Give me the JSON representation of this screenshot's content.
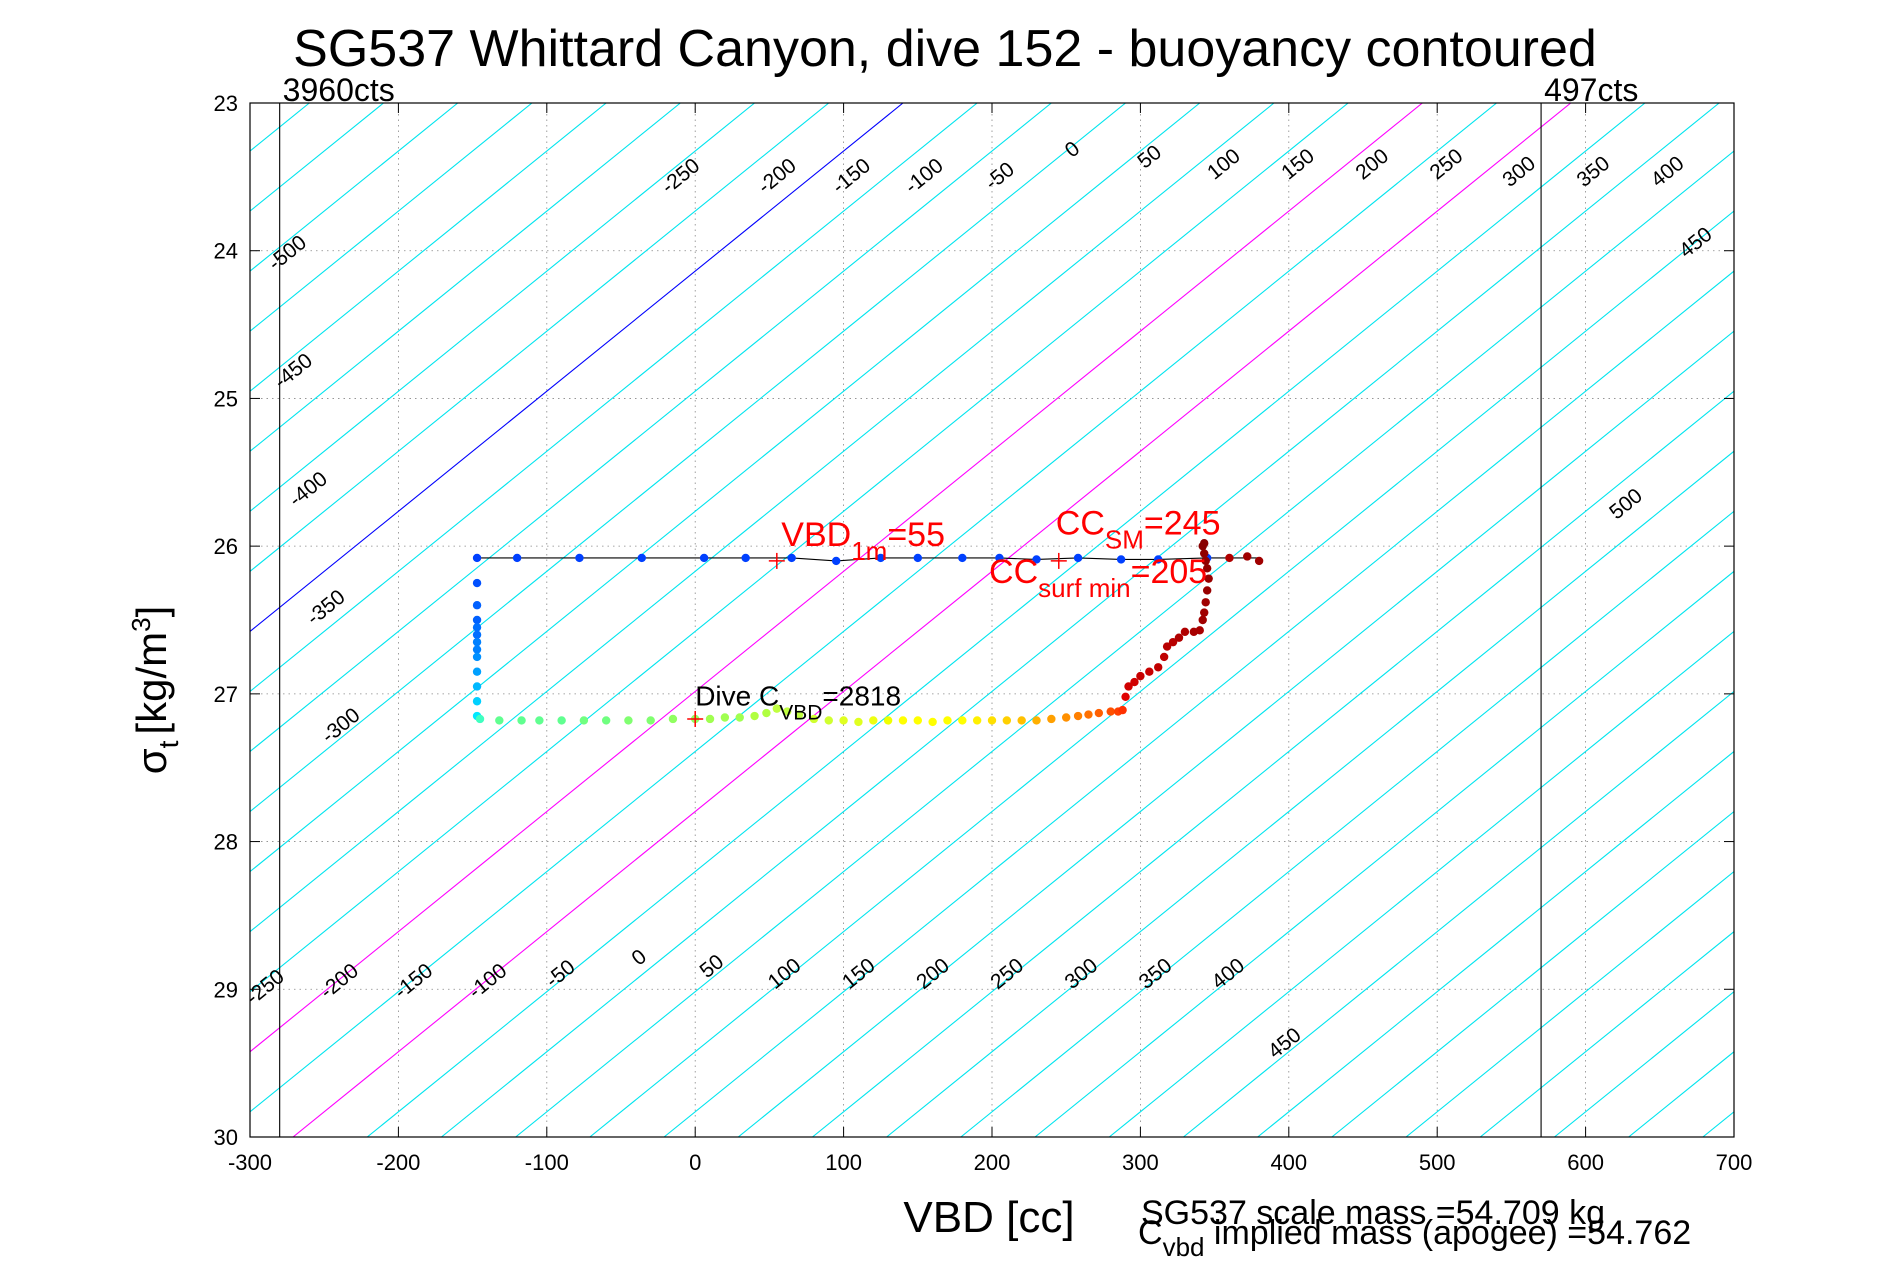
{
  "chart_data": {
    "type": "scatter",
    "title": "SG537 Whittard Canyon, dive 152 - buoyancy contoured",
    "xlabel": "VBD [cc]",
    "ylabel": {
      "main": "σ",
      "sub": "t",
      "unit": "[kg/m",
      "sup": "3",
      "close": "]"
    },
    "xlim": [
      -300,
      700
    ],
    "ylim": [
      23,
      30
    ],
    "y_reversed": true,
    "grid": true,
    "x_ticks": [
      -300,
      -200,
      -100,
      0,
      100,
      200,
      300,
      400,
      500,
      600,
      700
    ],
    "x_tick_labels": [
      "-300",
      "-200",
      "-100",
      "0",
      "100",
      "200",
      "300",
      "400",
      "500",
      "600",
      "700"
    ],
    "y_ticks": [
      23,
      24,
      25,
      26,
      27,
      28,
      29,
      30
    ],
    "y_tick_labels": [
      "23",
      "24",
      "25",
      "26",
      "27",
      "28",
      "29",
      "30"
    ],
    "vertical_limits": [
      {
        "x": -280,
        "label": "3960cts"
      },
      {
        "x": 570,
        "label": "497cts"
      }
    ],
    "contours": {
      "slope_cc_per_sigma": 123,
      "ref_sigma": 23,
      "x_at_ref": [
        -410,
        -360,
        -310,
        -260,
        -210,
        -160,
        -110,
        -60,
        -10,
        40,
        90,
        140,
        190,
        240,
        290,
        340,
        390,
        440,
        490,
        540,
        590,
        640,
        690,
        740,
        790,
        840,
        890,
        940,
        990,
        1040,
        1090,
        1140,
        1190,
        1240,
        1290,
        1340,
        1390,
        1440,
        1490,
        1540
      ],
      "highlight": [
        {
          "x_at_ref": 140,
          "color": "#0000ff"
        },
        {
          "x_at_ref": 490,
          "color": "#ff00ff"
        },
        {
          "x_at_ref": 590,
          "color": "#ff00ff"
        }
      ],
      "labels_top": [
        {
          "text": "-500",
          "x": -272,
          "y": 24.05
        },
        {
          "text": "-450",
          "x": -268,
          "y": 24.85
        },
        {
          "text": "-400",
          "x": -258,
          "y": 25.65
        },
        {
          "text": "-350",
          "x": -246,
          "y": 26.45
        },
        {
          "text": "-300",
          "x": -236,
          "y": 27.25
        },
        {
          "text": "-250",
          "x": -7,
          "y": 23.53
        },
        {
          "text": "-200",
          "x": 58,
          "y": 23.53
        },
        {
          "text": "-150",
          "x": 108,
          "y": 23.53
        },
        {
          "text": "-100",
          "x": 157,
          "y": 23.53
        },
        {
          "text": "-50",
          "x": 208,
          "y": 23.53
        },
        {
          "text": "0",
          "x": 257,
          "y": 23.35
        },
        {
          "text": "50",
          "x": 309,
          "y": 23.4
        },
        {
          "text": "100",
          "x": 359,
          "y": 23.45
        },
        {
          "text": "150",
          "x": 409,
          "y": 23.45
        },
        {
          "text": "200",
          "x": 459,
          "y": 23.45
        },
        {
          "text": "250",
          "x": 509,
          "y": 23.45
        },
        {
          "text": "300",
          "x": 558,
          "y": 23.5
        },
        {
          "text": "350",
          "x": 608,
          "y": 23.5
        },
        {
          "text": "400",
          "x": 658,
          "y": 23.5
        },
        {
          "text": "450",
          "x": 677,
          "y": 23.98
        },
        {
          "text": "500",
          "x": 630,
          "y": 25.75
        }
      ],
      "labels_bottom": [
        {
          "text": "-250",
          "x": -287,
          "y": 29.02
        },
        {
          "text": "-200",
          "x": -237,
          "y": 28.98
        },
        {
          "text": "-150",
          "x": -187,
          "y": 28.98
        },
        {
          "text": "-100",
          "x": -137,
          "y": 28.98
        },
        {
          "text": "-50",
          "x": -88,
          "y": 28.93
        },
        {
          "text": "0",
          "x": -35,
          "y": 28.82
        },
        {
          "text": "50",
          "x": 14,
          "y": 28.88
        },
        {
          "text": "100",
          "x": 63,
          "y": 28.93
        },
        {
          "text": "150",
          "x": 113,
          "y": 28.93
        },
        {
          "text": "200",
          "x": 163,
          "y": 28.93
        },
        {
          "text": "250",
          "x": 213,
          "y": 28.93
        },
        {
          "text": "300",
          "x": 263,
          "y": 28.93
        },
        {
          "text": "350",
          "x": 313,
          "y": 28.93
        },
        {
          "text": "400",
          "x": 362,
          "y": 28.93
        },
        {
          "text": "450",
          "x": 400,
          "y": 29.4
        }
      ]
    },
    "series": [
      {
        "type": "path",
        "color": "#000000",
        "x": [
          -147,
          -120,
          -78,
          -36,
          6,
          34,
          65,
          95,
          125,
          150,
          180,
          205,
          230,
          258,
          287,
          312,
          345,
          360,
          380
        ],
        "y": [
          26.08,
          26.08,
          26.08,
          26.08,
          26.08,
          26.08,
          26.08,
          26.1,
          26.08,
          26.08,
          26.08,
          26.08,
          26.09,
          26.08,
          26.09,
          26.09,
          26.08,
          26.08,
          26.08
        ]
      },
      {
        "type": "scatter",
        "x": [
          -147,
          -120,
          -78,
          -36,
          6,
          34,
          65,
          95,
          125,
          150,
          180,
          205,
          230,
          258,
          287,
          312,
          345,
          360,
          372,
          380
        ],
        "y": [
          26.08,
          26.08,
          26.08,
          26.08,
          26.08,
          26.08,
          26.08,
          26.1,
          26.08,
          26.08,
          26.08,
          26.08,
          26.09,
          26.08,
          26.09,
          26.09,
          26.08,
          26.08,
          26.07,
          26.1
        ],
        "colors": [
          "#0040ff",
          "#0040ff",
          "#0040ff",
          "#0040ff",
          "#0040ff",
          "#0040ff",
          "#0040ff",
          "#0040ff",
          "#0040ff",
          "#0040ff",
          "#0040ff",
          "#0040ff",
          "#0040ff",
          "#0040ff",
          "#0040ff",
          "#0040ff",
          "#0040ff",
          "#b00000",
          "#a00000",
          "#a00000"
        ]
      },
      {
        "type": "scatter",
        "x": [
          -147,
          -147,
          -147,
          -147,
          -147,
          -147,
          -147,
          -147,
          -147,
          -147,
          -147,
          -147
        ],
        "y": [
          26.25,
          26.4,
          26.5,
          26.55,
          26.6,
          26.65,
          26.7,
          26.75,
          26.85,
          26.95,
          27.05,
          27.15
        ],
        "colors": [
          "#0050ff",
          "#0060ff",
          "#0060ff",
          "#0070ff",
          "#0070ff",
          "#0080ff",
          "#0080ff",
          "#0090ff",
          "#00a0ff",
          "#00b8ff",
          "#00d0ff",
          "#00e8ff"
        ]
      },
      {
        "type": "scatter",
        "x": [
          -145,
          -132,
          -117,
          -105,
          -90,
          -75,
          -60,
          -45,
          -30,
          -15,
          0,
          10,
          20,
          30,
          40,
          48,
          55,
          62,
          70,
          80,
          90,
          100,
          110,
          120,
          130,
          140,
          150,
          160,
          170,
          180,
          190,
          200,
          210,
          220,
          230,
          240,
          250,
          258,
          265,
          272,
          280,
          285,
          288
        ],
        "y": [
          27.17,
          27.18,
          27.18,
          27.18,
          27.18,
          27.18,
          27.18,
          27.18,
          27.18,
          27.17,
          27.17,
          27.17,
          27.16,
          27.16,
          27.15,
          27.13,
          27.1,
          27.12,
          27.14,
          27.17,
          27.18,
          27.18,
          27.19,
          27.18,
          27.18,
          27.18,
          27.18,
          27.19,
          27.18,
          27.18,
          27.18,
          27.18,
          27.18,
          27.18,
          27.18,
          27.17,
          27.16,
          27.15,
          27.14,
          27.13,
          27.12,
          27.12,
          27.11
        ],
        "colors": [
          "#40ffc0",
          "#60ff90",
          "#60ff90",
          "#60ff90",
          "#60ff90",
          "#70ff80",
          "#70ff80",
          "#80ff70",
          "#80ff70",
          "#90ff60",
          "#90ff60",
          "#a0ff50",
          "#a0ff50",
          "#a0ff50",
          "#b0ff40",
          "#b0ff40",
          "#c0ff40",
          "#c0ff40",
          "#c0ff40",
          "#d0ff30",
          "#d0ff30",
          "#e0ff20",
          "#e0ff20",
          "#eeff10",
          "#f0ff00",
          "#ffff00",
          "#ffff00",
          "#ffff00",
          "#ffff00",
          "#ffff00",
          "#fff000",
          "#ffe000",
          "#ffd000",
          "#ffc000",
          "#ffb000",
          "#ffa000",
          "#ff9000",
          "#ff8000",
          "#ff7000",
          "#ff6000",
          "#ff5000",
          "#ff4000",
          "#ff3000"
        ]
      },
      {
        "type": "scatter",
        "x": [
          290,
          292,
          296,
          300,
          306,
          312,
          316,
          318,
          322,
          326,
          330,
          336,
          340,
          342,
          343,
          344,
          345,
          346,
          345,
          344,
          343,
          342,
          343
        ],
        "y": [
          27.02,
          26.95,
          26.92,
          26.88,
          26.85,
          26.82,
          26.75,
          26.68,
          26.65,
          26.62,
          26.58,
          26.58,
          26.57,
          26.5,
          26.45,
          26.38,
          26.3,
          26.22,
          26.15,
          26.1,
          26.05,
          26.0,
          25.98
        ],
        "colors": [
          "#e00000",
          "#d00000",
          "#d00000",
          "#c80000",
          "#c80000",
          "#c00000",
          "#c00000",
          "#b80000",
          "#b80000",
          "#b00000",
          "#b00000",
          "#a80000",
          "#a80000",
          "#a00000",
          "#a00000",
          "#a00000",
          "#980000",
          "#980000",
          "#900000",
          "#900000",
          "#900000",
          "#880000",
          "#880000"
        ]
      }
    ],
    "markers": [
      {
        "x": 55,
        "y": 26.1,
        "color": "#ff0000"
      },
      {
        "x": 245,
        "y": 26.1,
        "color": "#ff0000"
      },
      {
        "x": 0,
        "y": 27.17,
        "color": "#ff0000"
      }
    ],
    "annotations": [
      {
        "main": "VBD",
        "sub": "1m",
        "tail": "=55",
        "x": 58,
        "y": 26.0,
        "color": "#ff0000",
        "size": 34
      },
      {
        "main": "CC",
        "sub": "SM",
        "tail": "=245",
        "x": 243,
        "y": 25.92,
        "color": "#ff0000",
        "size": 34
      },
      {
        "main": "CC",
        "sub": "surf min",
        "tail": "=205",
        "x": 198,
        "y": 26.25,
        "color": "#ff0000",
        "size": 34
      },
      {
        "main": "Dive C",
        "sub": "VBD",
        "tail": "=2818",
        "x": 0,
        "y": 27.08,
        "color": "#000000",
        "size": 28
      }
    ],
    "footer": [
      {
        "text": "SG537 scale mass =54.709 kg"
      },
      {
        "main": "C",
        "sub": "vbd",
        "tail": " implied mass (apogee) =54.762"
      }
    ]
  }
}
